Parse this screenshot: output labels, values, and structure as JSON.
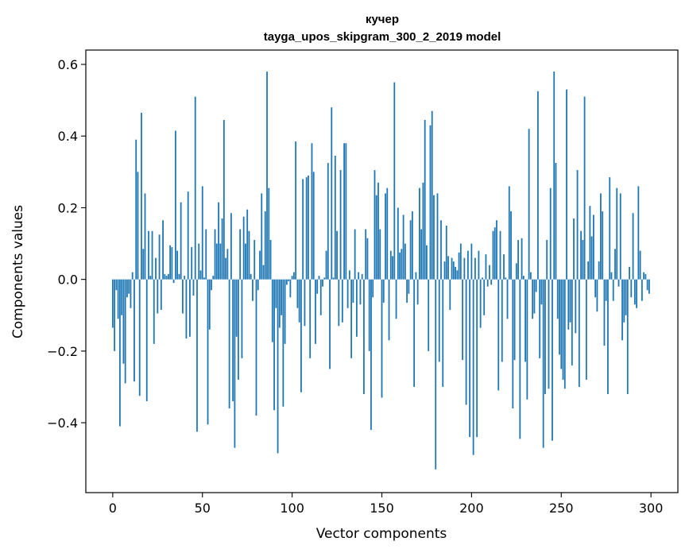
{
  "chart_data": {
    "type": "bar",
    "title": "кучер",
    "subtitle": "tayga_upos_skipgram_300_2_2019 model",
    "xlabel": "Vector components",
    "ylabel": "Components values",
    "xlim": [
      -15,
      315
    ],
    "ylim": [
      -0.595,
      0.64
    ],
    "xticks": [
      0,
      50,
      100,
      150,
      200,
      250,
      300
    ],
    "xtick_labels": [
      "0",
      "50",
      "100",
      "150",
      "200",
      "250",
      "300"
    ],
    "yticks": [
      -0.4,
      -0.2,
      0.0,
      0.2,
      0.4,
      0.6
    ],
    "ytick_labels": [
      "−0.4",
      "−0.2",
      "0.0",
      "0.2",
      "0.4",
      "0.6"
    ],
    "grid": false,
    "bar_color": "#1f77b4",
    "values": [
      -0.135,
      -0.2,
      -0.03,
      -0.11,
      -0.41,
      -0.1,
      -0.235,
      -0.29,
      -0.05,
      -0.04,
      -0.08,
      0.02,
      -0.285,
      0.39,
      0.3,
      -0.325,
      0.465,
      0.085,
      0.24,
      -0.34,
      0.135,
      0.01,
      0.135,
      -0.18,
      0.06,
      -0.095,
      0.125,
      -0.085,
      0.165,
      0.015,
      0.01,
      0.015,
      0.095,
      0.09,
      -0.01,
      0.415,
      0.08,
      0.015,
      0.215,
      -0.095,
      0.01,
      -0.165,
      0.245,
      -0.16,
      0.09,
      -0.045,
      0.51,
      -0.425,
      0.1,
      0.025,
      0.26,
      0.005,
      0.14,
      -0.405,
      -0.14,
      -0.03,
      0.01,
      0.14,
      0.1,
      0.215,
      0.1,
      0.17,
      0.445,
      0.06,
      0.085,
      -0.36,
      0.185,
      -0.34,
      -0.47,
      -0.16,
      -0.28,
      0.14,
      -0.22,
      0.175,
      0.1,
      0.195,
      0.135,
      0.015,
      -0.06,
      0.11,
      -0.38,
      -0.03,
      0.08,
      0.24,
      0.04,
      0.19,
      0.58,
      0.255,
      0.11,
      -0.175,
      -0.365,
      -0.08,
      -0.485,
      -0.135,
      -0.1,
      -0.355,
      -0.18,
      -0.015,
      -0.005,
      -0.05,
      0.01,
      0.02,
      0.385,
      -0.08,
      -0.12,
      -0.315,
      0.28,
      -0.13,
      0.285,
      0.29,
      -0.22,
      0.38,
      0.3,
      -0.18,
      -0.04,
      0.01,
      -0.1,
      -0.02,
      0.005,
      0.08,
      0.325,
      -0.25,
      0.48,
      0.005,
      0.345,
      0.135,
      -0.13,
      0.305,
      -0.12,
      0.38,
      0.38,
      -0.08,
      0.025,
      -0.22,
      -0.065,
      0.14,
      -0.16,
      0.02,
      -0.07,
      0.015,
      -0.32,
      0.14,
      0.115,
      -0.2,
      -0.42,
      -0.05,
      0.305,
      0.235,
      0.27,
      0.14,
      -0.33,
      -0.065,
      0.24,
      0.255,
      -0.17,
      0.08,
      0.065,
      0.55,
      -0.11,
      0.2,
      0.075,
      0.085,
      0.18,
      0.1,
      -0.065,
      -0.04,
      0.165,
      0.19,
      -0.3,
      0.02,
      -0.07,
      0.255,
      0.14,
      0.27,
      0.445,
      0.095,
      -0.2,
      0.43,
      0.47,
      0.235,
      -0.53,
      0.24,
      -0.23,
      0.165,
      -0.3,
      0.05,
      0.15,
      0.065,
      -0.085,
      0.06,
      0.05,
      0.035,
      0.025,
      0.075,
      0.1,
      -0.225,
      0.06,
      -0.35,
      0.08,
      -0.44,
      0.1,
      -0.49,
      0.06,
      -0.44,
      0.08,
      -0.135,
      0.005,
      -0.1,
      0.07,
      -0.02,
      0.04,
      -0.015,
      0.135,
      0.145,
      0.165,
      -0.31,
      0.135,
      -0.23,
      0.07,
      0.005,
      -0.11,
      0.26,
      0.19,
      -0.36,
      -0.225,
      0.045,
      0.11,
      -0.445,
      0.115,
      0.01,
      -0.23,
      -0.335,
      0.42,
      0.02,
      -0.11,
      -0.095,
      -0.035,
      0.525,
      -0.22,
      -0.07,
      -0.47,
      -0.32,
      0.11,
      -0.305,
      0.255,
      -0.45,
      0.58,
      0.325,
      -0.11,
      -0.21,
      -0.25,
      -0.28,
      -0.305,
      0.53,
      -0.14,
      -0.12,
      -0.24,
      0.17,
      -0.15,
      0.305,
      -0.3,
      0.135,
      0.11,
      0.51,
      -0.28,
      0.05,
      0.205,
      0.12,
      0.18,
      -0.05,
      -0.09,
      0.05,
      0.24,
      0.19,
      -0.185,
      -0.06,
      -0.32,
      0.285,
      0.02,
      -0.06,
      0.085,
      0.255,
      -0.02,
      0.24,
      -0.17,
      -0.12,
      -0.1,
      -0.32,
      0.035,
      -0.05,
      0.185,
      -0.07,
      -0.08,
      0.26,
      0.08,
      -0.06,
      0.02,
      0.015,
      -0.03,
      -0.04
    ]
  }
}
